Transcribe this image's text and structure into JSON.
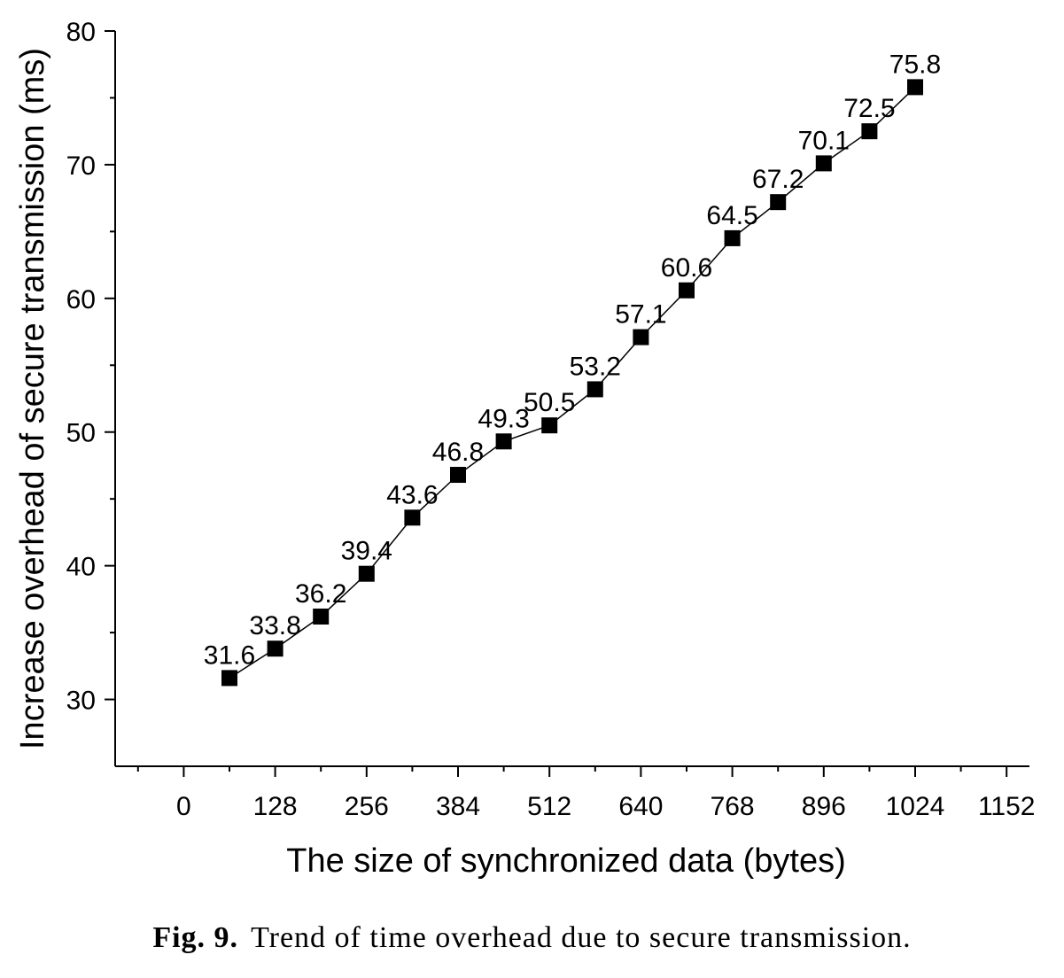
{
  "chart_data": {
    "type": "line",
    "xlabel": "The size of synchronized data (bytes)",
    "ylabel": "Increase overhead of secure transmission (ms)",
    "xlim": [
      -96,
      1184
    ],
    "ylim": [
      25,
      80
    ],
    "x_ticks": [
      0,
      128,
      256,
      384,
      512,
      640,
      768,
      896,
      1024,
      1152
    ],
    "y_ticks": [
      30,
      40,
      50,
      60,
      70,
      80
    ],
    "grid": false,
    "marker": "square",
    "series": [
      {
        "x": [
          64,
          128,
          192,
          256,
          320,
          384,
          448,
          512,
          576,
          640,
          704,
          768,
          832,
          896,
          960,
          1024
        ],
        "values": [
          31.6,
          33.8,
          36.2,
          39.4,
          43.6,
          46.8,
          49.3,
          50.5,
          53.2,
          57.1,
          60.6,
          64.5,
          67.2,
          70.1,
          72.5,
          75.8
        ],
        "labels": [
          "31.6",
          "33.8",
          "36.2",
          "39.4",
          "43.6",
          "46.8",
          "49.3",
          "50.5",
          "53.2",
          "57.1",
          "60.6",
          "64.5",
          "67.2",
          "70.1",
          "72.5",
          "75.8"
        ],
        "color": "#000000"
      }
    ]
  },
  "caption": {
    "label": "Fig. 9.",
    "text": "Trend of time overhead due to secure transmission."
  }
}
